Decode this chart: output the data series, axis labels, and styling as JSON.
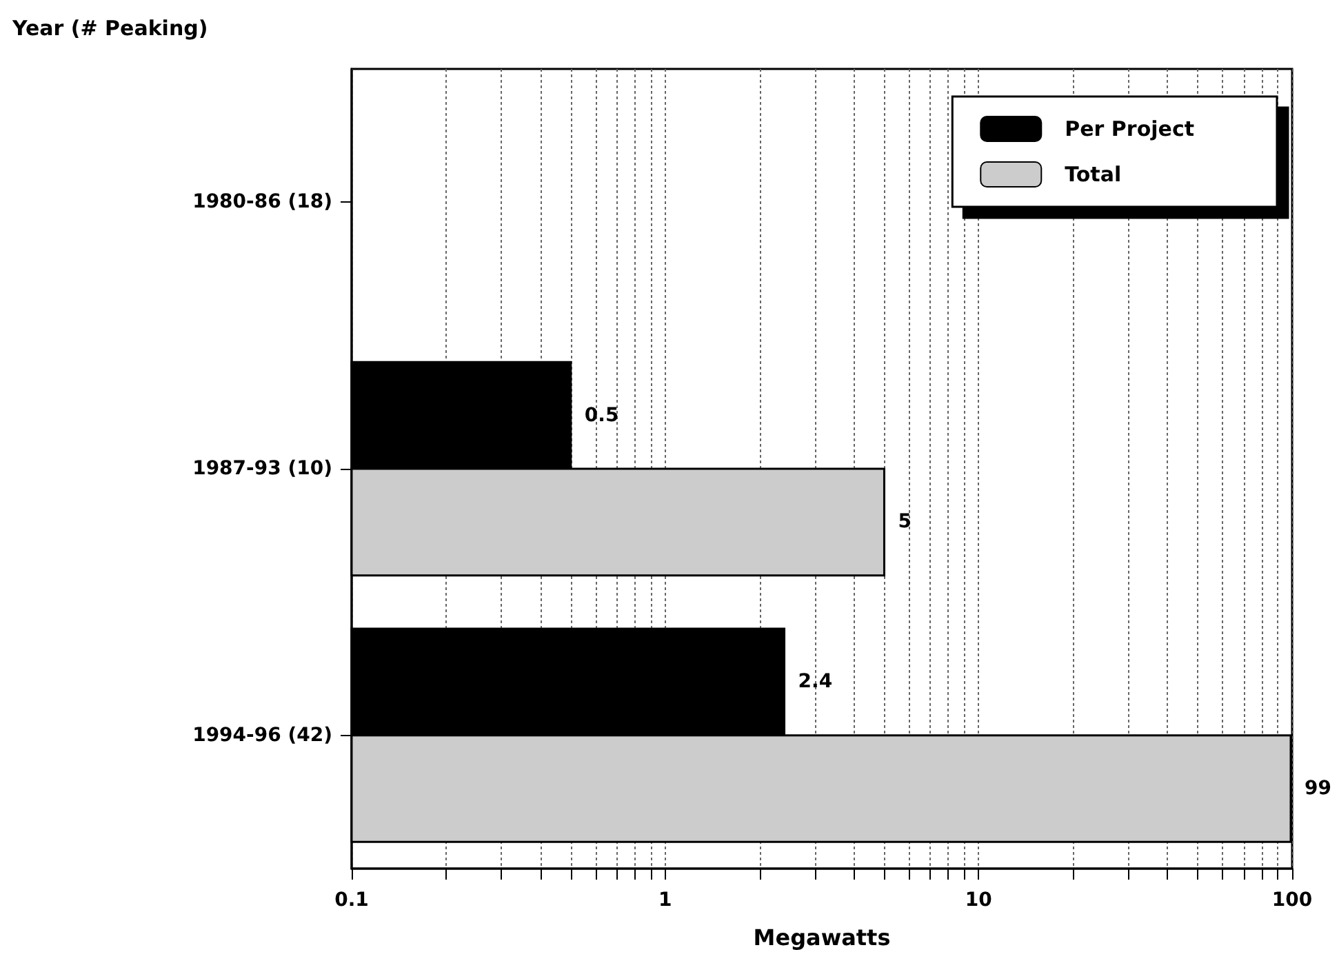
{
  "chart_data": {
    "type": "bar",
    "orientation": "horizontal",
    "ylabel": "Year (# Peaking)",
    "xlabel": "Megawatts",
    "categories": [
      "1980-86 (18)",
      "1987-93 (10)",
      "1994-96 (42)"
    ],
    "series": [
      {
        "name": "Per Project",
        "color": "#000000",
        "values": [
          null,
          0.5,
          2.4
        ]
      },
      {
        "name": "Total",
        "color": "#cccccc",
        "values": [
          null,
          5,
          99
        ]
      }
    ],
    "log": "x",
    "xlim": [
      0.1,
      100
    ],
    "xticks": [
      0.1,
      {
        "value": 0.2,
        "label": null
      },
      {
        "value": 0.3,
        "label": null
      },
      {
        "value": 0.4,
        "label": null
      },
      {
        "value": 0.5,
        "label": null
      },
      {
        "value": 0.6,
        "label": null
      },
      {
        "value": 0.7,
        "label": null
      },
      {
        "value": 0.8,
        "label": null
      },
      {
        "value": 0.9,
        "label": null
      },
      1,
      {
        "value": 2,
        "label": null
      },
      {
        "value": 3,
        "label": null
      },
      {
        "value": 4,
        "label": null
      },
      {
        "value": 5,
        "label": null
      },
      {
        "value": 6,
        "label": null
      },
      {
        "value": 7,
        "label": null
      },
      {
        "value": 8,
        "label": null
      },
      {
        "value": 9,
        "label": null
      },
      10,
      {
        "value": 20,
        "label": null
      },
      {
        "value": 30,
        "label": null
      },
      {
        "value": 40,
        "label": null
      },
      {
        "value": 50,
        "label": null
      },
      {
        "value": 60,
        "label": null
      },
      {
        "value": 70,
        "label": null
      },
      {
        "value": 80,
        "label": null
      },
      {
        "value": 90,
        "label": null
      },
      100
    ],
    "grid": "x",
    "legend": "top right",
    "data_labels": true
  }
}
